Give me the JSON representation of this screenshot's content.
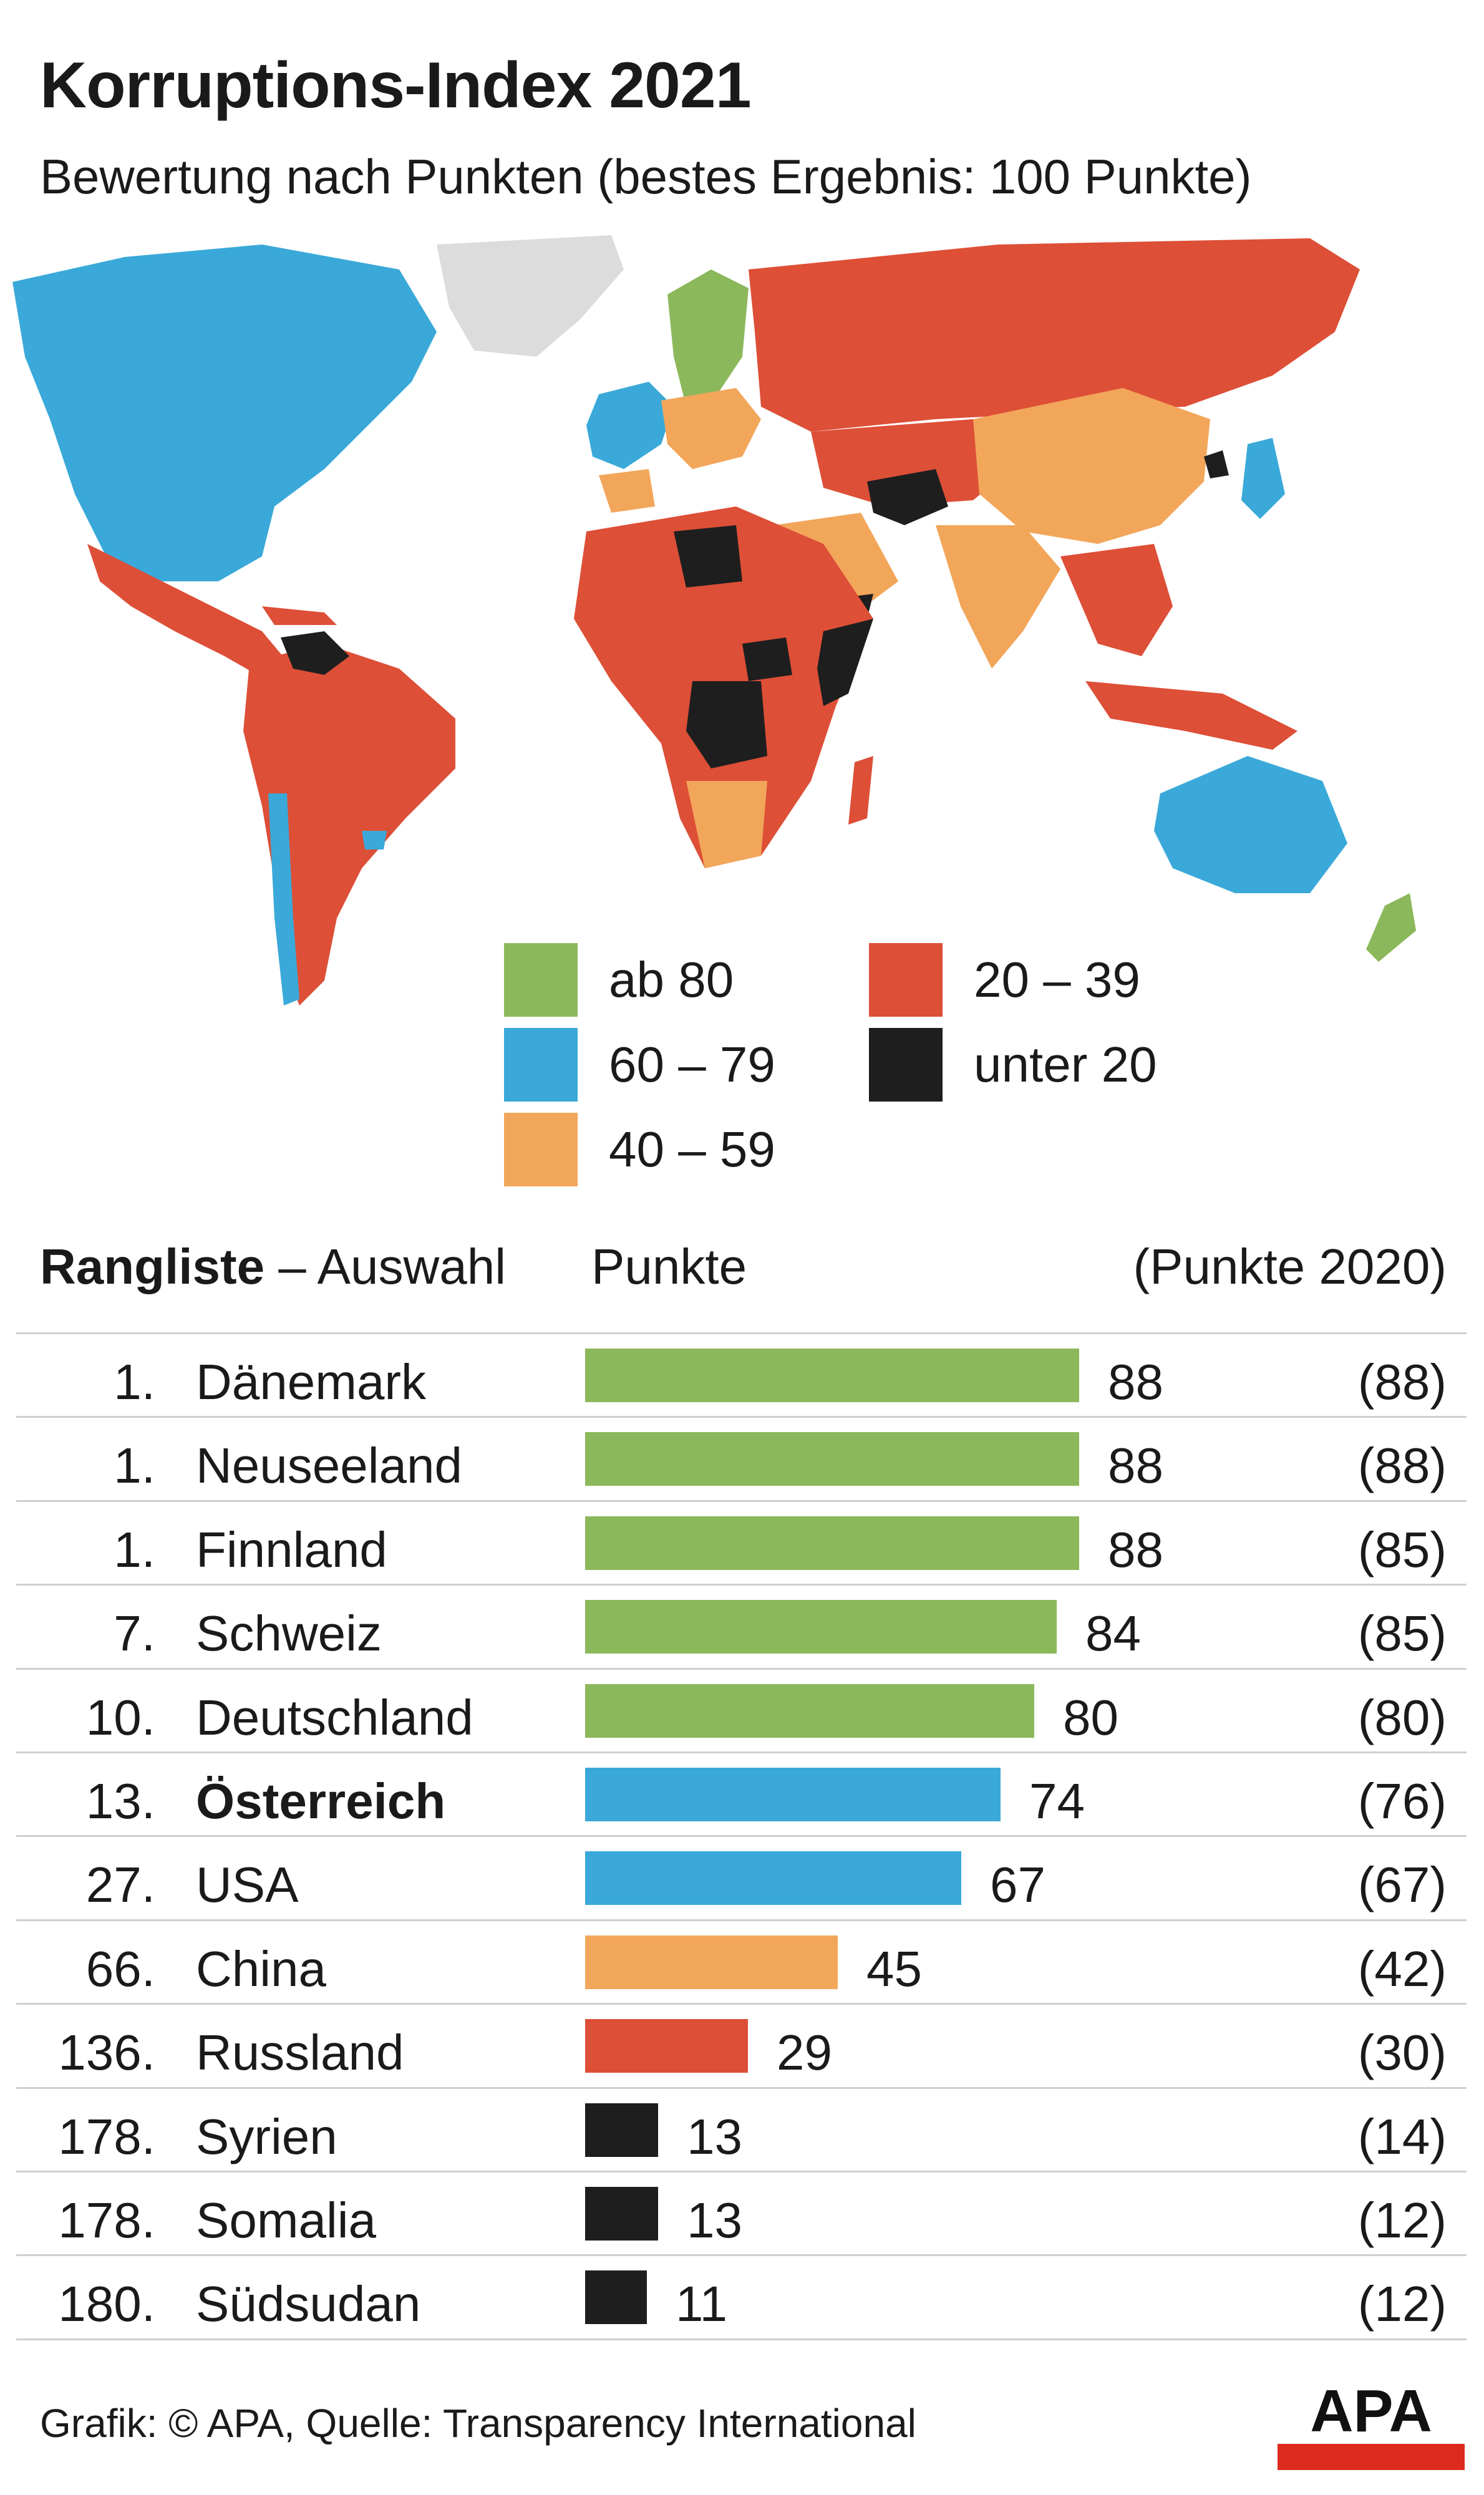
{
  "title": "Korruptions-Index 2021",
  "subtitle": "Bewertung nach Punkten (bestes Ergebnis: 100 Punkte)",
  "colors": {
    "green": "#8cb85c",
    "blue": "#3aa9d9",
    "orange": "#f2a65a",
    "red": "#dd4f37",
    "black": "#1e1e1e",
    "grey": "#dcdcdc"
  },
  "legend": [
    {
      "label": "ab 80",
      "color": "#8cb85c"
    },
    {
      "label": "60 – 79",
      "color": "#3aa9d9"
    },
    {
      "label": "40 – 59",
      "color": "#f2a65a"
    },
    {
      "label": "20 – 39",
      "color": "#dd4f37"
    },
    {
      "label": "unter 20",
      "color": "#1e1e1e"
    }
  ],
  "table": {
    "head_bold": "Rangliste",
    "head_rest": " – Auswahl",
    "col_points": "Punkte",
    "col_prev": "(Punkte 2020)"
  },
  "chart_data": {
    "type": "bar",
    "orientation": "horizontal",
    "title": "Korruptions-Index 2021",
    "xlim": [
      0,
      100
    ],
    "categories": [
      "Dänemark",
      "Neuseeland",
      "Finnland",
      "Schweiz",
      "Deutschland",
      "Österreich",
      "USA",
      "China",
      "Russland",
      "Syrien",
      "Somalia",
      "Südsudan"
    ],
    "ranks": [
      "1.",
      "1.",
      "1.",
      "7.",
      "10.",
      "13.",
      "27.",
      "66.",
      "136.",
      "178.",
      "178.",
      "180."
    ],
    "values": [
      88,
      88,
      88,
      84,
      80,
      74,
      67,
      45,
      29,
      13,
      13,
      11
    ],
    "values_2020": [
      "(88)",
      "(88)",
      "(85)",
      "(85)",
      "(80)",
      "(76)",
      "(67)",
      "(42)",
      "(30)",
      "(14)",
      "(12)",
      "(12)"
    ],
    "highlight": "Österreich"
  },
  "footer": "Grafik: © APA, Quelle: Transparency International",
  "logo_text": "APA"
}
